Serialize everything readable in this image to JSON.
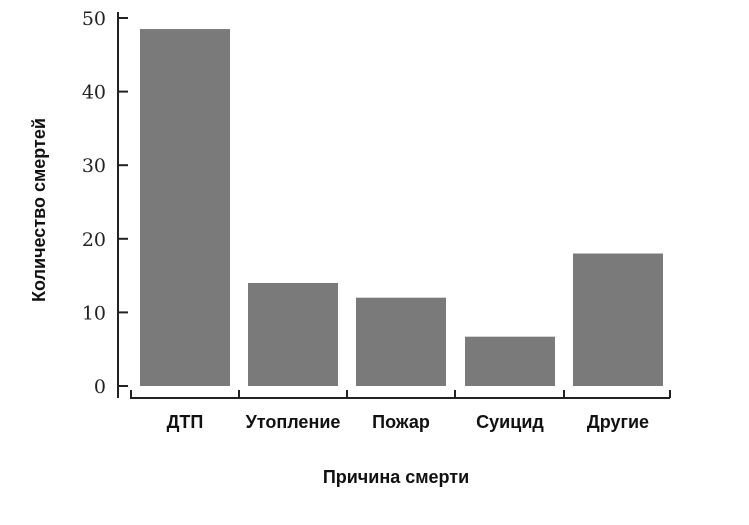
{
  "chart_data": {
    "type": "bar",
    "title": "",
    "xlabel": "Причина смерти",
    "ylabel": "Количество смертей",
    "categories": [
      "ДТП",
      "Утопление",
      "Пожар",
      "Суицид",
      "Другие"
    ],
    "values": [
      48.5,
      14,
      12,
      6.7,
      18
    ],
    "ylim": [
      0,
      50
    ],
    "yticks": [
      {
        "value": 0,
        "label": "0"
      },
      {
        "value": 10,
        "label": "10"
      },
      {
        "value": 20,
        "label": "20"
      },
      {
        "value": 30,
        "label": "30"
      },
      {
        "value": 40,
        "label": "40"
      },
      {
        "value": 50,
        "label": "50"
      }
    ],
    "grid": false,
    "legend": "none",
    "bar_color": "#7a7a7a",
    "axis_color": "#222222"
  }
}
